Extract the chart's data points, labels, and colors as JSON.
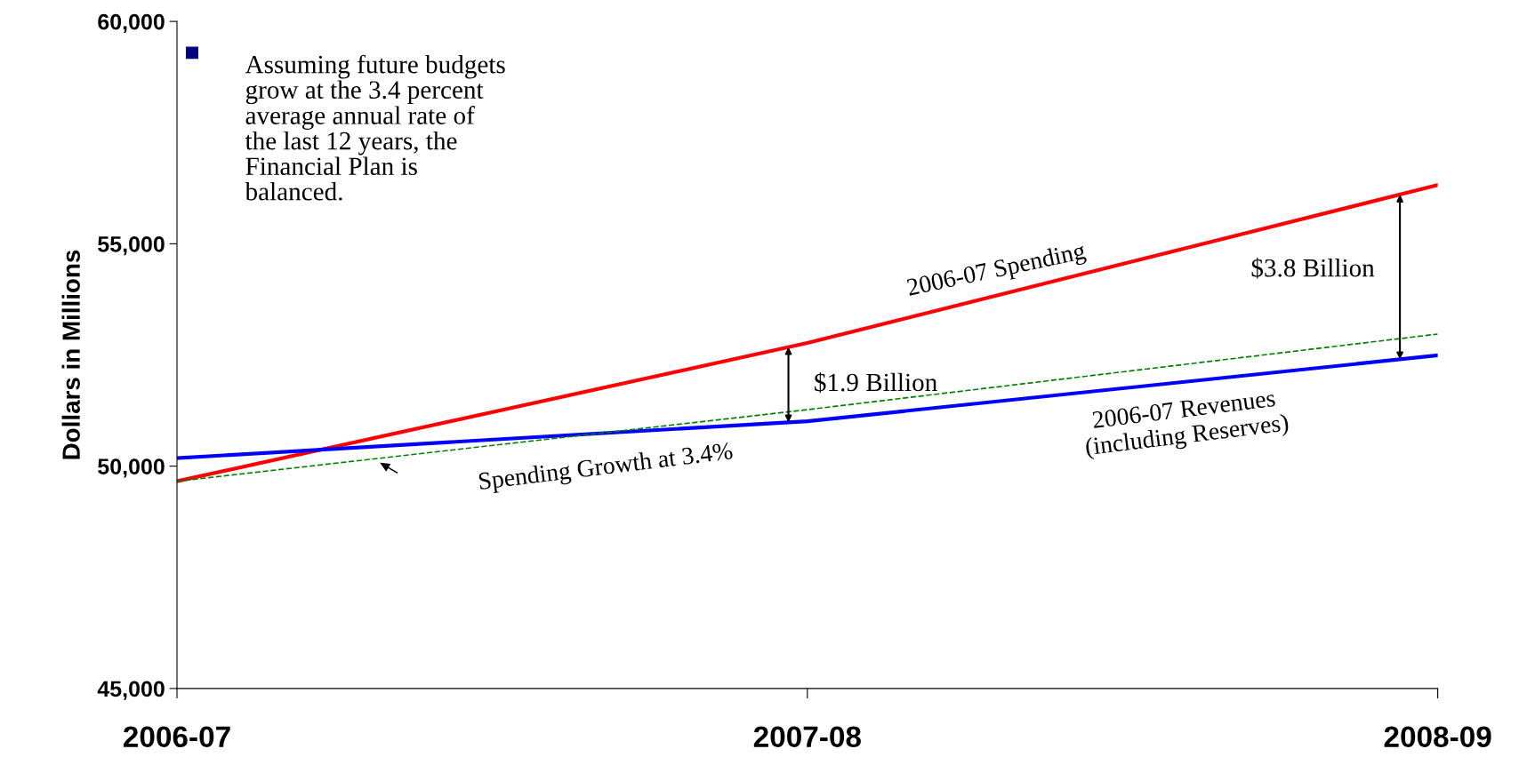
{
  "chart_data": {
    "type": "line",
    "ylabel": "Dollars in Millions",
    "categories": [
      "2006-07",
      "2007-08",
      "2008-09"
    ],
    "series": [
      {
        "name": "2006-07 Spending",
        "color": "#ff0000",
        "values": [
          49660,
          52770,
          56320
        ]
      },
      {
        "name": "2006-07 Revenues\n(including Reserves)",
        "color": "#0000ff",
        "values": [
          50180,
          51010,
          52490
        ]
      },
      {
        "name": "Spending Growth at 3.4%",
        "color": "#008000",
        "line_style": "dashed",
        "values": [
          49660,
          51270,
          52970
        ]
      }
    ],
    "ylim": [
      45000,
      60000
    ],
    "yticks": [
      {
        "value": 45000,
        "label": "45,000"
      },
      {
        "value": 50000,
        "label": "50,000"
      },
      {
        "value": 55000,
        "label": "55,000"
      },
      {
        "value": 60000,
        "label": "60,000"
      }
    ],
    "annotations": [
      "Assuming future budgets\ngrow at the 3.4 percent\naverage annual rate of\nthe last 12 years, the\nFinancial Plan is\nbalanced.",
      "$1.9 Billion",
      "$3.8 Billion"
    ],
    "grid": false,
    "legend": false,
    "marker": "none"
  }
}
